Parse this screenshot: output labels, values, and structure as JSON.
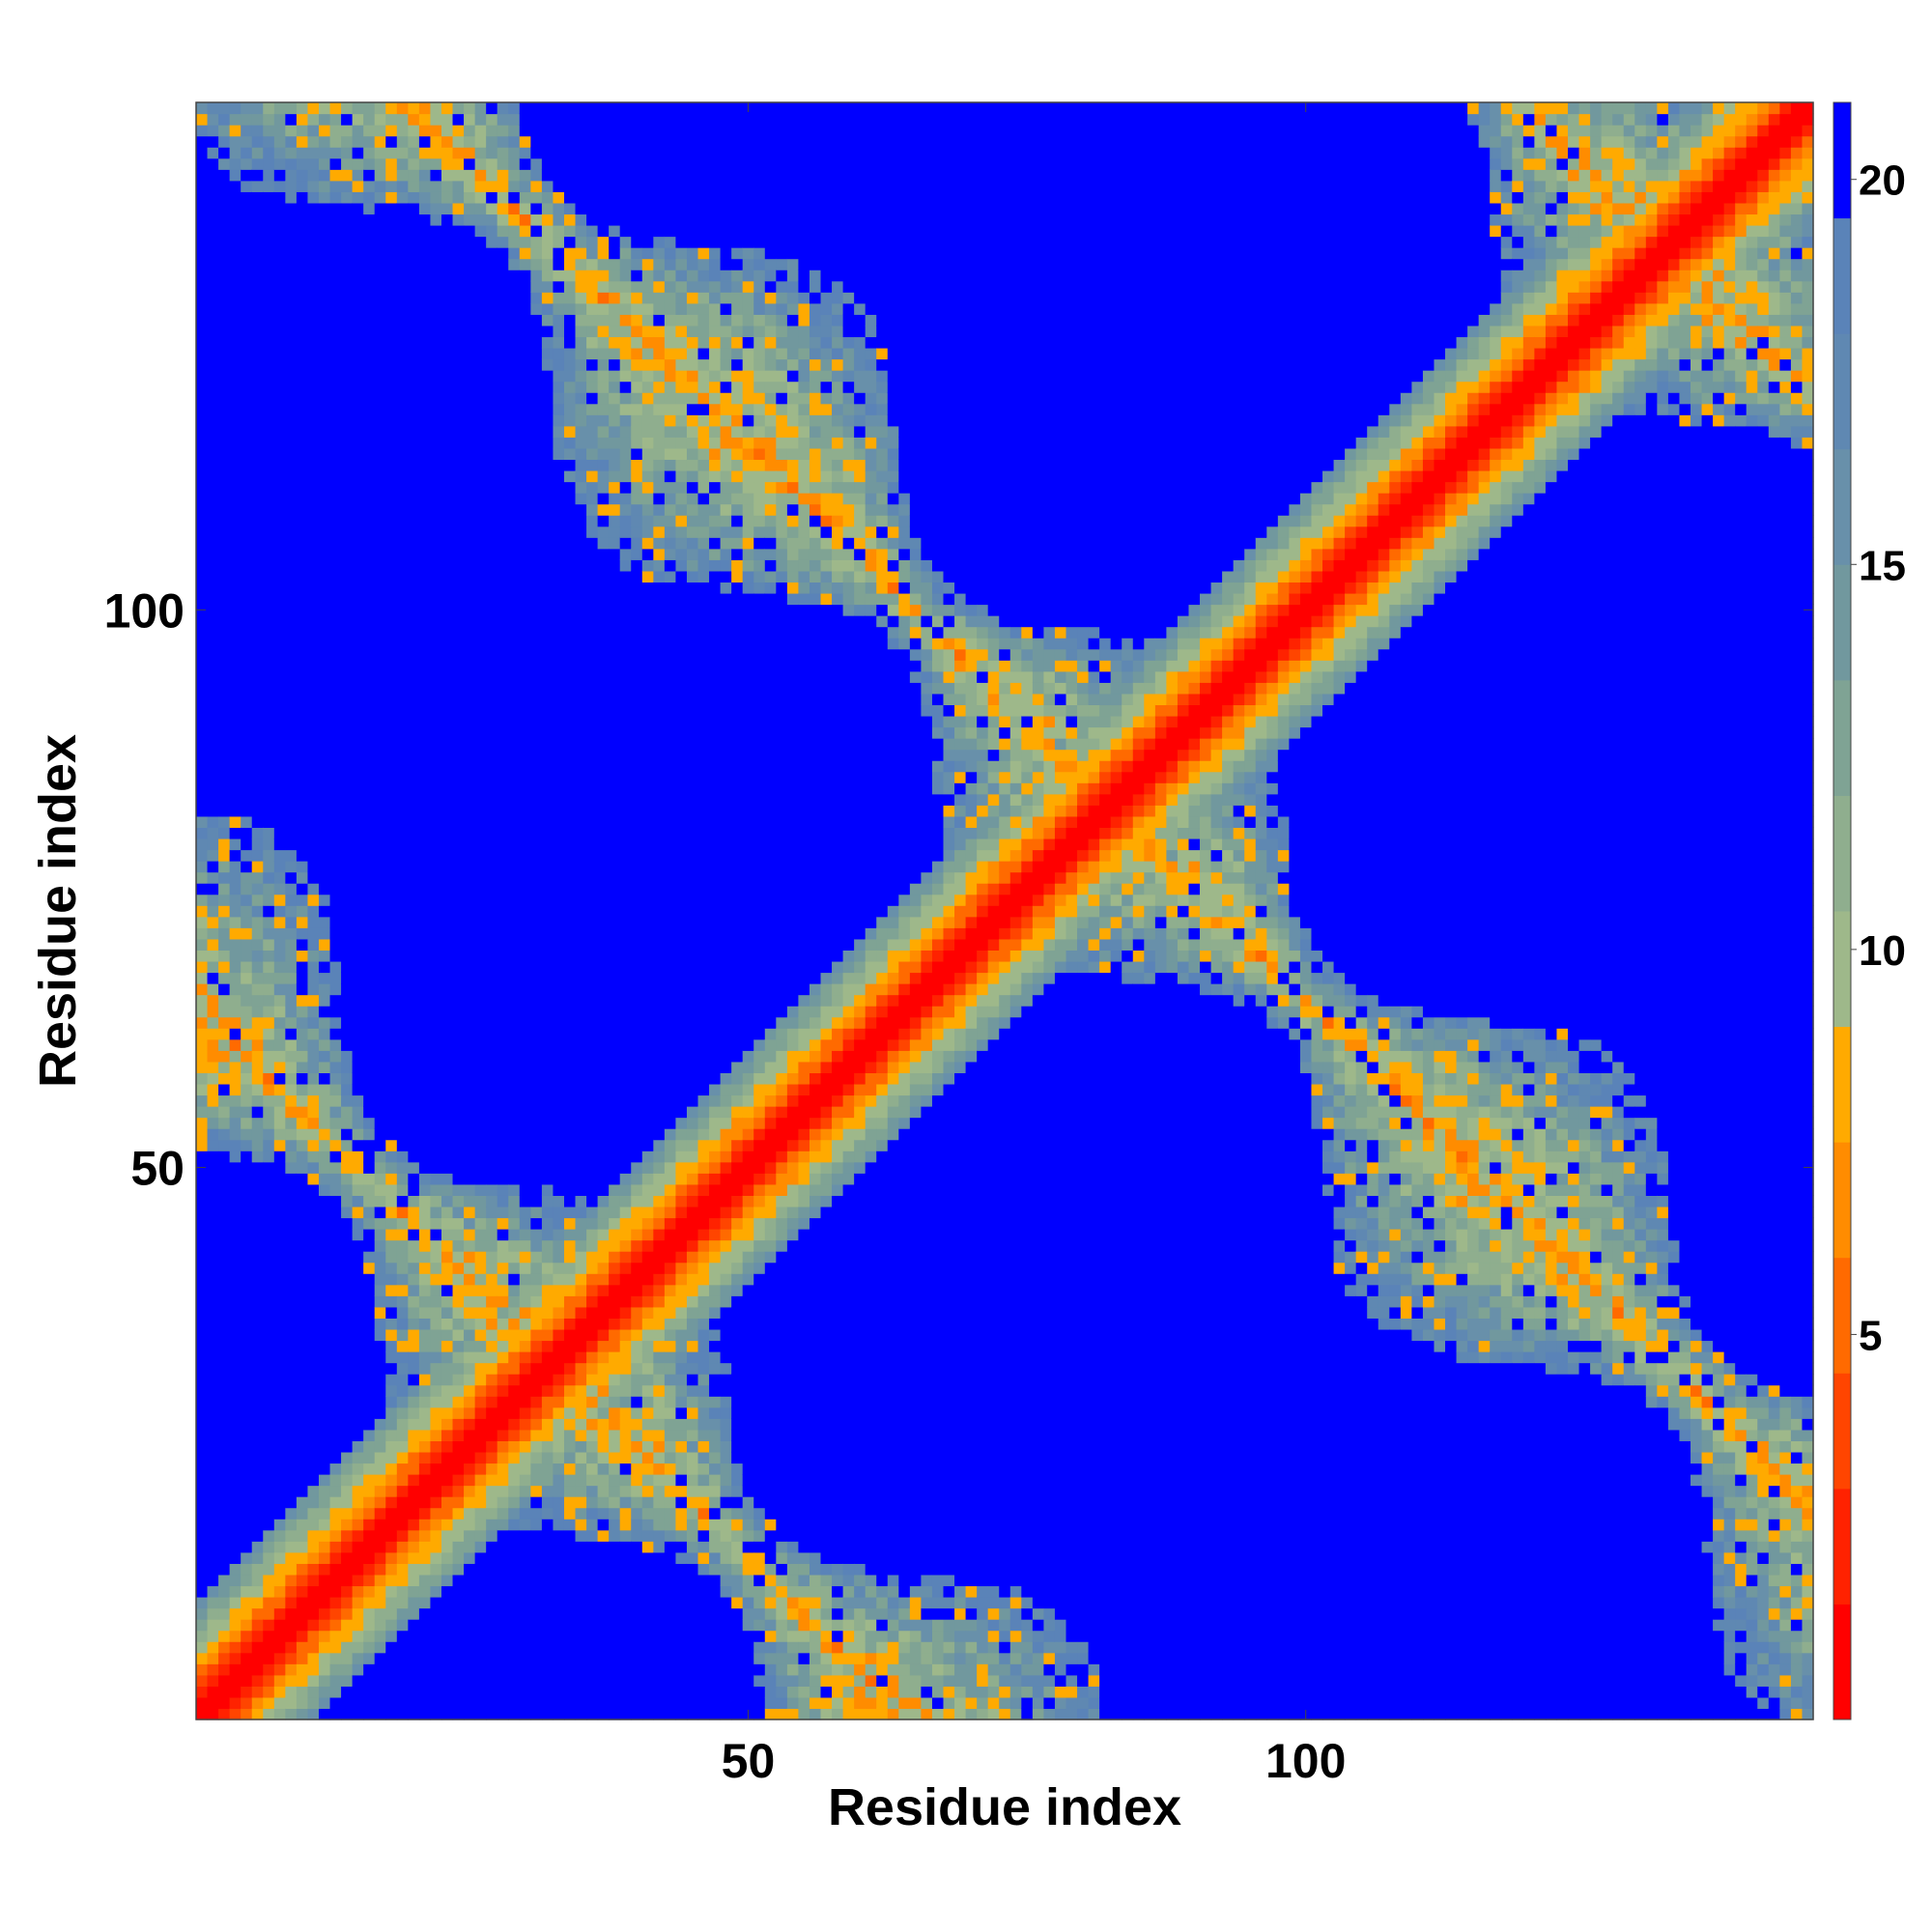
{
  "chart_data": {
    "type": "heatmap",
    "title": "",
    "xlabel": "Residue index",
    "ylabel": "Residue index",
    "n_residues": 145,
    "x_range": [
      1,
      145
    ],
    "y_range": [
      1,
      145
    ],
    "x_ticks": [
      50,
      100
    ],
    "x_tick_labels": [
      "50",
      "100"
    ],
    "y_ticks": [
      50,
      100
    ],
    "y_tick_labels": [
      "50",
      "100"
    ],
    "colorbar": {
      "range": [
        0,
        21
      ],
      "ticks": [
        5,
        10,
        15,
        20
      ],
      "tick_labels": [
        "5",
        "10",
        "15",
        "20"
      ],
      "levels": [
        {
          "max": 1.5,
          "color": "#ff0000"
        },
        {
          "max": 3.0,
          "color": "#ff2200"
        },
        {
          "max": 4.5,
          "color": "#ff4500"
        },
        {
          "max": 6.0,
          "color": "#ff6a00"
        },
        {
          "max": 7.5,
          "color": "#ff8c00"
        },
        {
          "max": 9.0,
          "color": "#ffaa00"
        },
        {
          "max": 10.5,
          "color": "#9eb88a"
        },
        {
          "max": 12.0,
          "color": "#8fae8e"
        },
        {
          "max": 13.5,
          "color": "#7fa394"
        },
        {
          "max": 15.0,
          "color": "#71989e"
        },
        {
          "max": 16.5,
          "color": "#6890aa"
        },
        {
          "max": 18.0,
          "color": "#5f88b2"
        },
        {
          "max": 19.5,
          "color": "#5a83b8"
        },
        {
          "max": 21.0,
          "color": "#0000ff"
        }
      ],
      "saturate_color": "#0000ff"
    },
    "description_of_values": "Symmetric residue-residue distance map (Angstrom-like units): red diagonal band (values < 2) flanked by orange and grey-green bands; off-diagonal antiparallel contact bands with grey/green texture and scattered orange points; blue background (values > 20).",
    "features": {
      "main_diagonal": true,
      "antidiagonal_contact_bands": [
        {
          "through": [
            82,
            82
          ],
          "direction": "antidiagonal"
        },
        {
          "through": [
            32,
            32
          ],
          "direction": "antidiagonal"
        },
        {
          "through": [
            132,
            132
          ],
          "direction": "antidiagonal"
        }
      ]
    }
  }
}
